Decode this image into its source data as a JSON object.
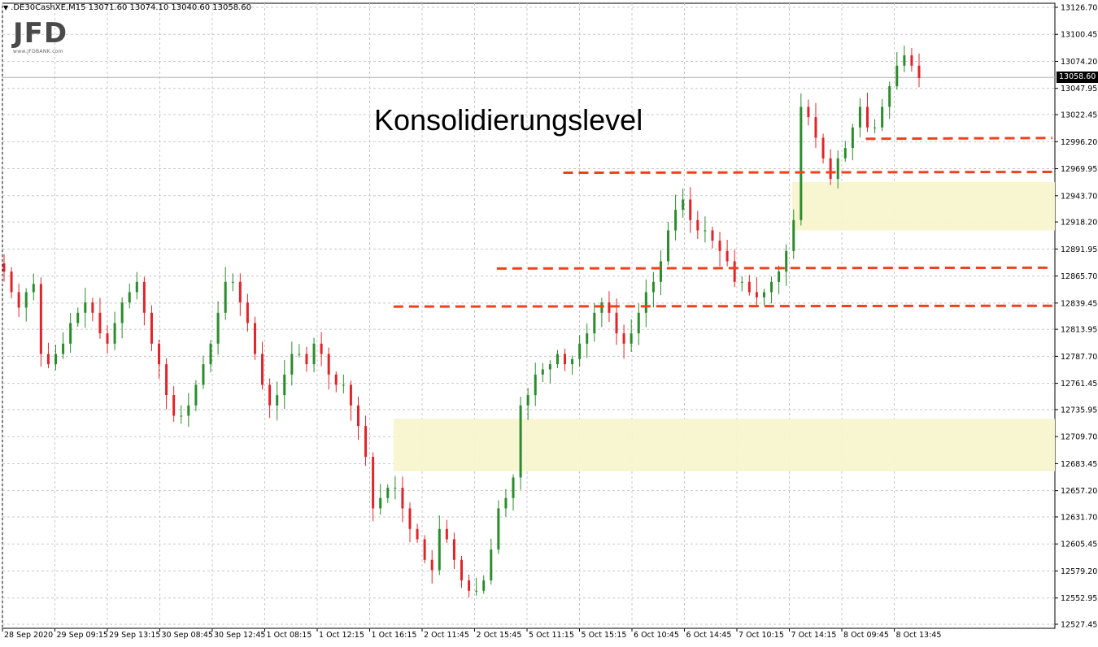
{
  "header": {
    "symbol_line": ".DE30CashXE,M15  13071.60 13074.10 13040.60 13058.60"
  },
  "logo": {
    "text": "JFD",
    "subtext": "www.JFDBANK.com"
  },
  "annotation": {
    "text": "Konsolidierungslevel"
  },
  "colors": {
    "bull": "#2a8c2a",
    "bear": "#e0242a",
    "grid": "#c8c8c8",
    "level_line": "#f0401c",
    "zone_fill": "#f7f6cf",
    "current_price_line": "#b4b4b4"
  },
  "current_price": {
    "value": 13058.6,
    "label": "13058.60"
  },
  "chart_data": {
    "type": "candlestick",
    "title": "",
    "symbol": ".DE30CashXE",
    "timeframe": "M15",
    "ohlc_current": {
      "open": 13071.6,
      "high": 13074.1,
      "low": 13040.6,
      "close": 13058.6
    },
    "ylim": [
      12527.45,
      13126.7
    ],
    "grid": true,
    "y_ticks": [
      "13126.70",
      "13100.45",
      "13074.20",
      "13047.95",
      "13022.45",
      "12996.20",
      "12969.95",
      "12943.70",
      "12918.20",
      "12891.95",
      "12865.70",
      "12839.45",
      "12813.95",
      "12787.70",
      "12761.45",
      "12735.95",
      "12709.70",
      "12683.45",
      "12657.20",
      "12631.70",
      "12605.45",
      "12579.20",
      "12552.95",
      "12527.45"
    ],
    "x_ticks": [
      "28 Sep 2020",
      "29 Sep 09:15",
      "29 Sep 13:15",
      "30 Sep 08:45",
      "30 Sep 12:45",
      "1 Oct 08:15",
      "1 Oct 12:15",
      "1 Oct 16:15",
      "2 Oct 11:45",
      "2 Oct 15:45",
      "5 Oct 11:15",
      "5 Oct 15:15",
      "6 Oct 10:45",
      "6 Oct 14:45",
      "7 Oct 10:15",
      "7 Oct 14:15",
      "8 Oct 09:45",
      "8 Oct 13:45"
    ],
    "close_path": [
      12870,
      12850,
      12835,
      12850,
      12858,
      12790,
      12780,
      12790,
      12800,
      12820,
      12830,
      12840,
      12830,
      12810,
      12800,
      12820,
      12840,
      12850,
      12860,
      12830,
      12800,
      12780,
      12750,
      12730,
      12730,
      12740,
      12760,
      12780,
      12800,
      12830,
      12860,
      12860,
      12840,
      12820,
      12790,
      12760,
      12740,
      12750,
      12770,
      12790,
      12790,
      12780,
      12800,
      12790,
      12770,
      12760,
      12760,
      12740,
      12720,
      12690,
      12640,
      12650,
      12660,
      12660,
      12640,
      12620,
      12610,
      12590,
      12580,
      12620,
      12610,
      12590,
      12570,
      12560,
      12560,
      12570,
      12600,
      12640,
      12650,
      12670,
      12740,
      12750,
      12770,
      12775,
      12780,
      12790,
      12780,
      12785,
      12800,
      12810,
      12830,
      12840,
      12830,
      12810,
      12800,
      12810,
      12830,
      12850,
      12860,
      12880,
      12910,
      12930,
      12940,
      12920,
      12910,
      12910,
      12900,
      12890,
      12880,
      12860,
      12860,
      12850,
      12845,
      12850,
      12860,
      12870,
      12890,
      12920,
      13030,
      13020,
      13000,
      12980,
      12960,
      12980,
      12990,
      13010,
      13030,
      13010,
      13010,
      13030,
      13050,
      13070,
      13080,
      13070,
      13058
    ],
    "levels": [
      {
        "price": 12999,
        "from_index": 117,
        "label": ""
      },
      {
        "price": 12966,
        "from_index": 76,
        "label": ""
      },
      {
        "price": 12873,
        "from_index": 67,
        "label": ""
      },
      {
        "price": 12836,
        "from_index": 53,
        "label": ""
      }
    ],
    "zones": [
      {
        "from": 12910,
        "to": 12957,
        "from_index": 107
      },
      {
        "from": 12676,
        "to": 12727,
        "from_index": 53
      }
    ]
  }
}
